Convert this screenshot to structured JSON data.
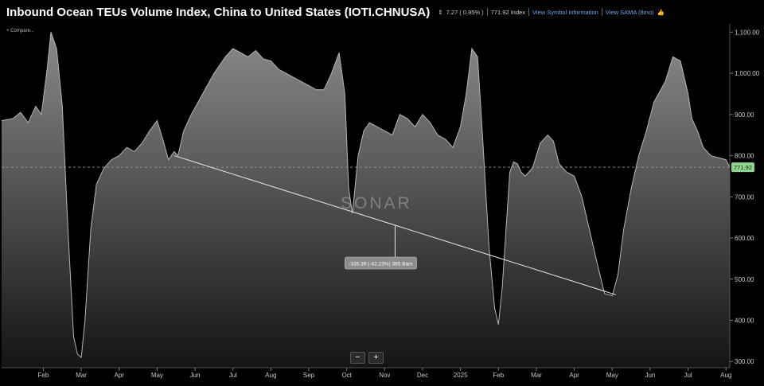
{
  "header": {
    "title": "Inbound Ocean TEUs Volume Index, China to United States (IOTI.CHNUSA)",
    "change_icon": "up-down-arrow-icon",
    "change": "7.27 ( 0.95% )",
    "value": "771.92 Index",
    "link_symbol": "View Symbol Information",
    "link_sama": "View SAMA (8mo)"
  },
  "compare_label": "Compare...",
  "watermark": "SONAR",
  "zoom": {
    "minus": "−",
    "plus": "+"
  },
  "colors": {
    "area_top": "#8a8a8a",
    "area_bottom": "#141414",
    "price_badge": "#8fd48f",
    "background": "#000000"
  },
  "chart_data": {
    "type": "area",
    "title": "Inbound Ocean TEUs Volume Index, China to United States (IOTI.CHNUSA)",
    "ylim": [
      285,
      1120
    ],
    "y_ticks": [
      "1,100.00",
      "1,000.00",
      "900.00",
      "800.00",
      "700.00",
      "600.00",
      "500.00",
      "400.00",
      "300.00"
    ],
    "y_tick_values": [
      1100,
      1000,
      900,
      800,
      700,
      600,
      500,
      400,
      300
    ],
    "x_tick_labels": [
      "Feb",
      "Mar",
      "Apr",
      "May",
      "Jun",
      "Jul",
      "Aug",
      "Sep",
      "Oct",
      "Nov",
      "Dec",
      "2025",
      "Feb",
      "Mar",
      "Apr",
      "May",
      "Jun",
      "Jul",
      "Aug"
    ],
    "x_tick_values": [
      0.4,
      1.4,
      2.4,
      3.4,
      4.4,
      5.4,
      6.4,
      7.4,
      8.4,
      9.4,
      10.4,
      11.4,
      12.4,
      13.4,
      14.4,
      15.4,
      16.4,
      17.4,
      18.4
    ],
    "x_range": [
      -0.7,
      18.5
    ],
    "x": [
      -0.7,
      -0.4,
      -0.2,
      0.0,
      0.2,
      0.35,
      0.5,
      0.6,
      0.75,
      0.9,
      1.05,
      1.2,
      1.3,
      1.4,
      1.5,
      1.65,
      1.8,
      2.0,
      2.2,
      2.4,
      2.6,
      2.8,
      3.0,
      3.2,
      3.4,
      3.55,
      3.7,
      3.85,
      3.95,
      4.1,
      4.3,
      4.6,
      4.9,
      5.2,
      5.4,
      5.6,
      5.8,
      6.0,
      6.2,
      6.4,
      6.6,
      6.8,
      7.0,
      7.2,
      7.4,
      7.6,
      7.8,
      8.0,
      8.2,
      8.35,
      8.45,
      8.55,
      8.7,
      8.85,
      9.0,
      9.2,
      9.4,
      9.6,
      9.8,
      10.0,
      10.2,
      10.4,
      10.6,
      10.8,
      11.0,
      11.2,
      11.4,
      11.55,
      11.7,
      11.85,
      12.0,
      12.15,
      12.3,
      12.4,
      12.5,
      12.6,
      12.7,
      12.8,
      12.9,
      13.0,
      13.1,
      13.3,
      13.5,
      13.7,
      13.85,
      14.0,
      14.2,
      14.4,
      14.6,
      14.8,
      15.0,
      15.2,
      15.4,
      15.55,
      15.7,
      15.9,
      16.1,
      16.3,
      16.5,
      16.8,
      17.0,
      17.2,
      17.4,
      17.5,
      17.65,
      17.8,
      18.0,
      18.2,
      18.4,
      18.5
    ],
    "y": [
      885,
      890,
      905,
      880,
      920,
      900,
      1010,
      1100,
      1060,
      920,
      620,
      360,
      318,
      310,
      400,
      620,
      730,
      770,
      790,
      800,
      820,
      810,
      830,
      860,
      885,
      840,
      790,
      810,
      800,
      860,
      900,
      950,
      1000,
      1040,
      1060,
      1050,
      1040,
      1055,
      1035,
      1030,
      1010,
      1000,
      990,
      980,
      970,
      960,
      960,
      1000,
      1050,
      950,
      720,
      660,
      800,
      860,
      880,
      870,
      860,
      850,
      900,
      890,
      870,
      900,
      880,
      850,
      840,
      820,
      870,
      950,
      1060,
      1040,
      820,
      580,
      430,
      390,
      480,
      620,
      760,
      785,
      780,
      760,
      750,
      770,
      830,
      850,
      835,
      780,
      760,
      750,
      700,
      620,
      540,
      465,
      460,
      510,
      620,
      720,
      800,
      860,
      930,
      980,
      1040,
      1030,
      950,
      890,
      860,
      820,
      800,
      795,
      790,
      772
    ],
    "current_value": 771.92,
    "current_value_label": "771.92",
    "measure_line": {
      "x1": 3.85,
      "y1": 800,
      "x2": 15.5,
      "y2": 462
    },
    "measure_label": "-335.39 (-42.23%) 365 Bars",
    "grid": false
  }
}
